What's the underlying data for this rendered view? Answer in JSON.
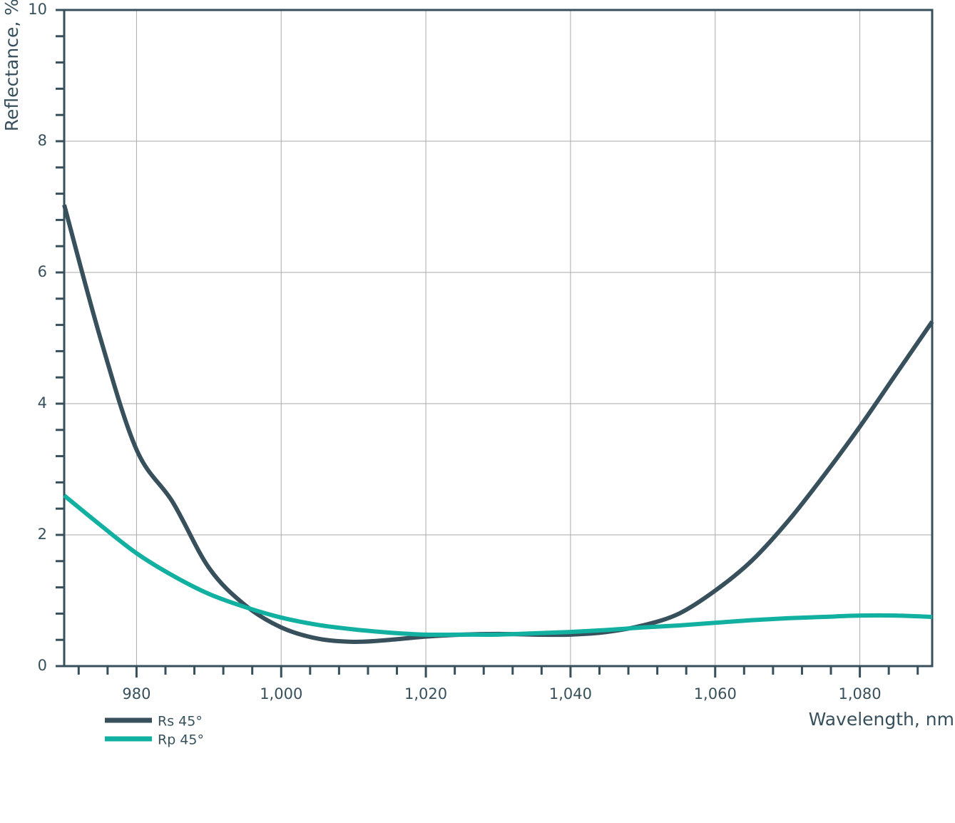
{
  "chart_data": {
    "type": "line",
    "x_label": "Wavelength, nm",
    "y_label": "Reflectance, %",
    "x": [
      970,
      975,
      980,
      985,
      990,
      995,
      1000,
      1005,
      1010,
      1015,
      1020,
      1025,
      1030,
      1035,
      1040,
      1045,
      1050,
      1055,
      1060,
      1065,
      1070,
      1075,
      1080,
      1085,
      1090
    ],
    "series": [
      {
        "name": "Rs 45°",
        "color": "#37505c",
        "values": [
          7.03,
          5.0,
          3.3,
          2.5,
          1.5,
          0.93,
          0.59,
          0.42,
          0.37,
          0.4,
          0.45,
          0.48,
          0.49,
          0.48,
          0.48,
          0.52,
          0.62,
          0.8,
          1.15,
          1.6,
          2.2,
          2.9,
          3.65,
          4.45,
          5.25
        ]
      },
      {
        "name": "Rp 45°",
        "color": "#12b0a0",
        "values": [
          2.6,
          2.15,
          1.72,
          1.38,
          1.1,
          0.9,
          0.74,
          0.63,
          0.56,
          0.51,
          0.48,
          0.48,
          0.48,
          0.5,
          0.52,
          0.55,
          0.59,
          0.62,
          0.66,
          0.7,
          0.73,
          0.75,
          0.77,
          0.77,
          0.75
        ]
      }
    ],
    "xlim": [
      970,
      1090
    ],
    "ylim": [
      0,
      10
    ],
    "xticks": [
      980,
      {
        "value": 1000,
        "label": "1,000"
      },
      {
        "value": 1020,
        "label": "1,020"
      },
      {
        "value": 1040,
        "label": "1,040"
      },
      {
        "value": 1060,
        "label": "1,060"
      },
      {
        "value": 1080,
        "label": "1,080"
      }
    ],
    "yticks": [
      0,
      2,
      4,
      6,
      8,
      10
    ],
    "xminorticks": [
      972,
      976,
      984,
      988,
      992,
      996,
      1004,
      1008,
      1012,
      1016,
      1024,
      1028,
      1032,
      1036,
      1044,
      1048,
      1052,
      1056,
      1064,
      1068,
      1072,
      1076,
      1084,
      1088
    ],
    "yminorticks": [
      0.4,
      0.8,
      1.2,
      1.6,
      2.4,
      2.8,
      3.2,
      3.6,
      4.4,
      4.8,
      5.2,
      5.6,
      6.4,
      6.8,
      7.2,
      7.6,
      8.4,
      8.8,
      9.2,
      9.6
    ],
    "grid": true
  }
}
